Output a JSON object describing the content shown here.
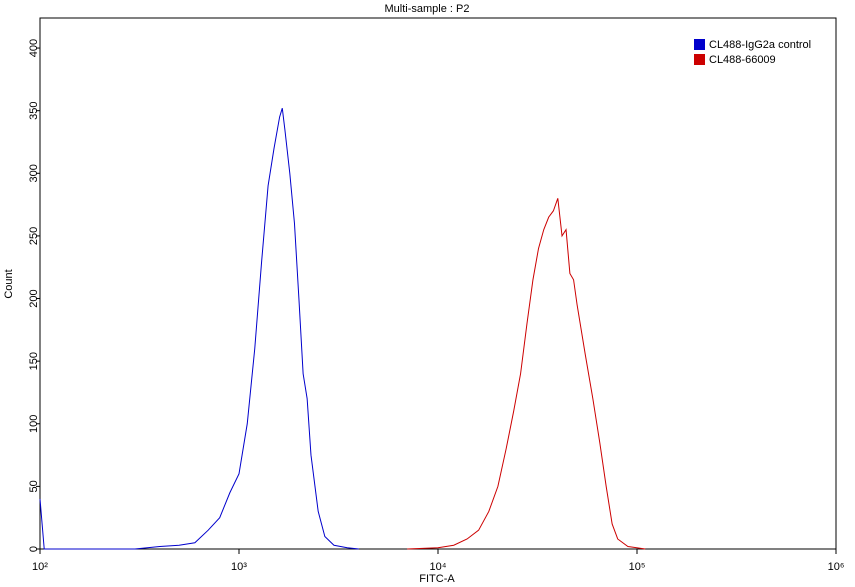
{
  "chart_data": {
    "type": "line",
    "title": "Multi-sample : P2",
    "x_label": "FITC-A",
    "y_label": "Count",
    "x_scale": "log",
    "legend_position": "upper right",
    "xlim": [
      100,
      1000000
    ],
    "xticks": [
      {
        "value": 100,
        "label": "10²"
      },
      {
        "value": 1000,
        "label": "10³"
      },
      {
        "value": 10000,
        "label": "10⁴"
      },
      {
        "value": 100000,
        "label": "10⁵"
      },
      {
        "value": 1000000,
        "label": "10⁶"
      }
    ],
    "ylim": [
      0,
      424
    ],
    "yticks": [
      0,
      50,
      100,
      150,
      200,
      250,
      300,
      350,
      400
    ],
    "series": [
      {
        "name": "CL488-IgG2a control",
        "color": "#0000cc",
        "x": [
          100,
          105,
          300,
          400,
          500,
          600,
          700,
          800,
          900,
          1000,
          1100,
          1200,
          1300,
          1400,
          1500,
          1600,
          1650,
          1700,
          1800,
          1900,
          2000,
          2100,
          2200,
          2300,
          2500,
          2700,
          3000,
          3500,
          4000
        ],
        "values": [
          40,
          0,
          0,
          2,
          3,
          5,
          15,
          25,
          45,
          60,
          100,
          160,
          230,
          290,
          320,
          345,
          352,
          335,
          300,
          260,
          200,
          140,
          120,
          75,
          30,
          10,
          3,
          1,
          0
        ]
      },
      {
        "name": "CL488-66009",
        "color": "#cc0000",
        "x": [
          7000,
          10000,
          12000,
          14000,
          16000,
          18000,
          20000,
          22000,
          24000,
          26000,
          28000,
          30000,
          32000,
          34000,
          36000,
          38000,
          40000,
          42000,
          44000,
          46000,
          48000,
          50000,
          55000,
          60000,
          65000,
          70000,
          75000,
          80000,
          90000,
          110000
        ],
        "values": [
          0,
          1,
          3,
          8,
          15,
          30,
          50,
          80,
          110,
          140,
          180,
          215,
          240,
          255,
          265,
          270,
          280,
          250,
          255,
          220,
          215,
          195,
          155,
          120,
          85,
          50,
          20,
          8,
          2,
          0
        ]
      }
    ]
  }
}
